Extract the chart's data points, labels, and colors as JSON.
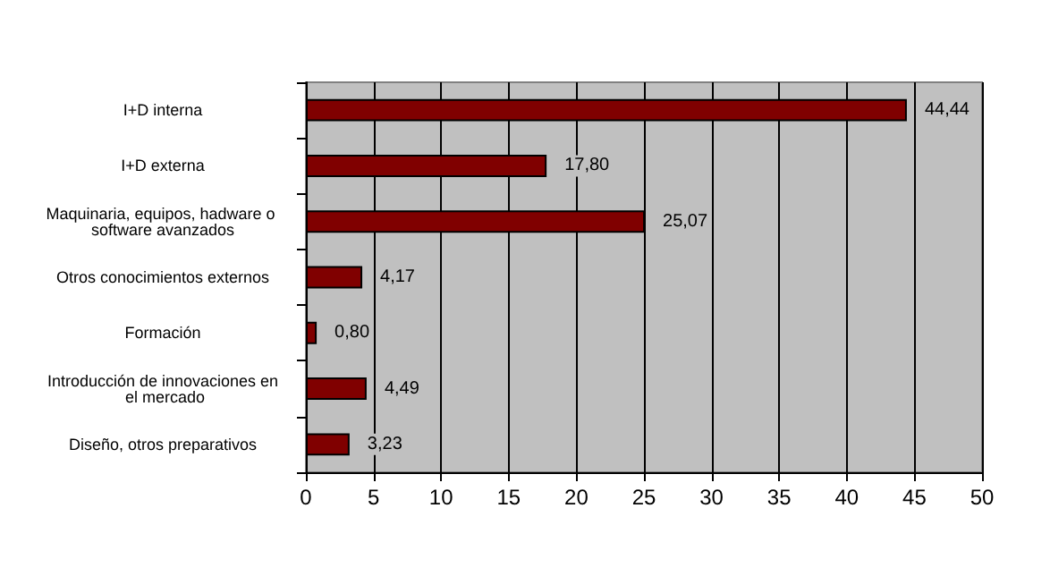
{
  "chart_data": {
    "type": "bar",
    "orientation": "horizontal",
    "categories": [
      "I+D interna",
      "I+D externa",
      "Maquinaria, equipos, hadware o software avanzados",
      "Otros conocimientos externos",
      "Formación",
      "Introducción de innovaciones en el mercado",
      "Diseño, otros preparativos"
    ],
    "values": [
      44.44,
      17.8,
      25.07,
      4.17,
      0.8,
      4.49,
      3.23
    ],
    "value_labels": [
      "44,44",
      "17,80",
      "25,07",
      "4,17",
      "0,80",
      "4,49",
      "3,23"
    ],
    "color": "#800000",
    "xlim": [
      0,
      50
    ],
    "xticks": [
      0,
      5,
      10,
      15,
      20,
      25,
      30,
      35,
      40,
      45,
      50
    ],
    "grid": "x"
  }
}
